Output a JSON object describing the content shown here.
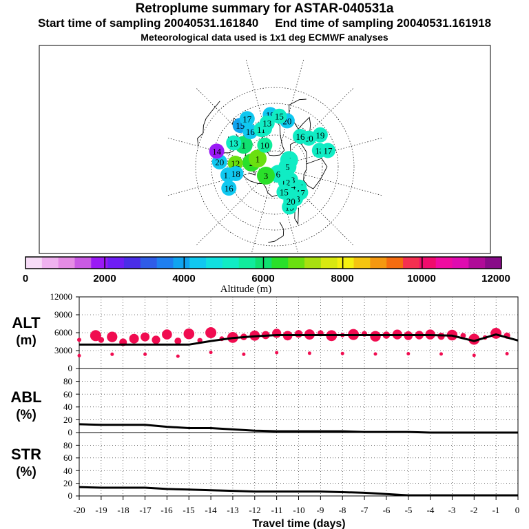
{
  "header": {
    "title": "Retroplume summary for ASTAR-040531a",
    "start_time": "Start time of sampling 20040531.161840",
    "end_time": "End time of sampling 20040531.161918",
    "met_data": "Meteorological data used is 1x1 deg ECMWF analyses"
  },
  "colorbar": {
    "ticks": [
      "0",
      "2000",
      "4000",
      "6000",
      "8000",
      "10000",
      "12000"
    ],
    "label": "Altitude (m)",
    "colors": [
      "#f7dcf7",
      "#efb2ef",
      "#e58ce5",
      "#c95ae3",
      "#9a1af5",
      "#6e1ef5",
      "#4a2ee8",
      "#2f5ce8",
      "#1f7ff0",
      "#10a4f0",
      "#10c8f0",
      "#10e0e0",
      "#10ecc4",
      "#10ec9c",
      "#10e070",
      "#2ae02a",
      "#6ae010",
      "#a8e010",
      "#d8e810",
      "#f4f010",
      "#f4c410",
      "#f49810",
      "#f46c10",
      "#f43050",
      "#f00c6c",
      "#f00ca0",
      "#e00cb0",
      "#b00c98",
      "#880c88"
    ]
  },
  "map_labels": [
    {
      "t": "20",
      "lon": -95,
      "lat": 62,
      "c": "#10ecc4"
    },
    {
      "t": "19",
      "lon": -100,
      "lat": 55,
      "c": "#10ecc4"
    },
    {
      "t": "18",
      "lon": -115,
      "lat": 60,
      "c": "#10ecc4"
    },
    {
      "t": "17",
      "lon": -118,
      "lat": 55,
      "c": "#10ecc4"
    },
    {
      "t": "16",
      "lon": -175,
      "lat": 70,
      "c": "#10ecc4"
    },
    {
      "t": "17",
      "lon": 180,
      "lat": 67,
      "c": "#10ecc4"
    },
    {
      "t": "18",
      "lon": 168,
      "lat": 66,
      "c": "#10ecc4"
    },
    {
      "t": "15",
      "lon": 155,
      "lat": 63,
      "c": "#10ecc4"
    },
    {
      "t": "20",
      "lon": 160,
      "lat": 66,
      "c": "#10ecc4"
    },
    {
      "t": "14",
      "lon": 175,
      "lat": 74,
      "c": "#10ecc4"
    },
    {
      "t": "13",
      "lon": -175,
      "lat": 77,
      "c": "#10ecc4"
    },
    {
      "t": "12",
      "lon": 170,
      "lat": 78,
      "c": "#10ecc4"
    },
    {
      "t": "15",
      "lon": 155,
      "lat": 73,
      "c": "#10ecc4"
    },
    {
      "t": "16",
      "lon": -85,
      "lat": 65,
      "c": "#10ecc4"
    },
    {
      "t": "4",
      "lon": -110,
      "lat": 80,
      "c": "#10ecc4"
    },
    {
      "t": "5",
      "lon": -135,
      "lat": 82,
      "c": "#10ecc4"
    },
    {
      "t": "6",
      "lon": 160,
      "lat": 85,
      "c": "#10ecc4"
    },
    {
      "t": "3",
      "lon": 90,
      "lat": 82,
      "c": "#2ae02a"
    },
    {
      "t": "2",
      "lon": 35,
      "lat": 75,
      "c": "#2ae02a"
    },
    {
      "t": "1",
      "lon": 20,
      "lat": 78,
      "c": "#6ae010"
    },
    {
      "t": "12",
      "lon": 40,
      "lat": 65,
      "c": "#6ae010"
    },
    {
      "t": "1",
      "lon": 10,
      "lat": 66,
      "c": "#10e070"
    },
    {
      "t": "15",
      "lon": -5,
      "lat": 56,
      "c": "#10a4f0"
    },
    {
      "t": "17",
      "lon": -15,
      "lat": 55,
      "c": "#10c8f0"
    },
    {
      "t": "16",
      "lon": -10,
      "lat": 63,
      "c": "#10c8f0"
    },
    {
      "t": "19",
      "lon": -40,
      "lat": 57,
      "c": "#10c8f0"
    },
    {
      "t": "20",
      "lon": -60,
      "lat": 60,
      "c": "#10c8f0"
    },
    {
      "t": "10",
      "lon": -20,
      "lat": 75,
      "c": "#10ec9c"
    },
    {
      "t": "13",
      "lon": 15,
      "lat": 60,
      "c": "#10ecc4"
    },
    {
      "t": "17",
      "lon": 55,
      "lat": 60,
      "c": "#10c8f0"
    },
    {
      "t": "16",
      "lon": 70,
      "lat": 58,
      "c": "#10c8f0"
    },
    {
      "t": "18",
      "lon": 55,
      "lat": 65,
      "c": "#10c8f0"
    },
    {
      "t": "20",
      "lon": 40,
      "lat": 55,
      "c": "#10c8f0"
    },
    {
      "t": "14",
      "lon": 30,
      "lat": 52,
      "c": "#9a1af5"
    },
    {
      "t": "12",
      "lon": -30,
      "lat": 65,
      "c": "#10ecc4"
    },
    {
      "t": "11",
      "lon": -25,
      "lat": 65,
      "c": "#10ecc4"
    },
    {
      "t": "13",
      "lon": -35,
      "lat": 62,
      "c": "#10ecc4"
    },
    {
      "t": "15",
      "lon": -50,
      "lat": 58,
      "c": "#10ecc4"
    }
  ],
  "chart_data": [
    {
      "type": "scatter",
      "title": "ALT (m)",
      "ylabel": "ALT (m)",
      "ylim": [
        0,
        12000
      ],
      "yticks": [
        "12000",
        "9000",
        "6000",
        "3000",
        "0"
      ],
      "median_line": {
        "x": [
          -20,
          -19,
          -18,
          -17,
          -16,
          -15,
          -14,
          -13,
          -12,
          -11,
          -10,
          -9,
          -8,
          -7,
          -6,
          -5,
          -4,
          -3,
          -2,
          -1,
          0
        ],
        "y": [
          4000,
          4000,
          4000,
          4000,
          4000,
          4000,
          4600,
          5100,
          5400,
          5600,
          5600,
          5600,
          5600,
          5600,
          5600,
          5600,
          5600,
          5500,
          4600,
          5700,
          4700
        ]
      },
      "points_x": [
        -20,
        -19.25,
        -19,
        -18.5,
        -18,
        -17.5,
        -17,
        -16.5,
        -16,
        -15.5,
        -15,
        -14.5,
        -14,
        -13.5,
        -13,
        -12.5,
        -12,
        -11.5,
        -11,
        -10.5,
        -10,
        -9.5,
        -9,
        -8.5,
        -8,
        -7.5,
        -7,
        -6.5,
        -6,
        -5.5,
        -5,
        -4.5,
        -4,
        -3.5,
        -3,
        -2.5,
        -2,
        -1.5,
        -1,
        -0.5
      ],
      "points_y": [
        4800,
        5500,
        4800,
        5300,
        4400,
        5000,
        5300,
        4800,
        5700,
        4600,
        5800,
        4700,
        6000,
        5000,
        5200,
        5300,
        5500,
        5600,
        5900,
        5500,
        5800,
        5700,
        5900,
        5500,
        5600,
        5700,
        5800,
        5400,
        5600,
        5700,
        5500,
        5600,
        5700,
        5400,
        5600,
        5500,
        4900,
        5200,
        5900,
        5500
      ]
    },
    {
      "type": "line",
      "title": "ABL (%)",
      "ylabel": "ABL (%)",
      "ylim": [
        0,
        100
      ],
      "yticks": [
        "80",
        "60",
        "40",
        "20",
        "0"
      ],
      "x": [
        -20,
        -19,
        -18,
        -17,
        -16,
        -15,
        -14,
        -13,
        -12,
        -11,
        -10,
        -9,
        -8,
        -7,
        -6,
        -5,
        -4,
        -3,
        -2,
        -1,
        0
      ],
      "y": [
        13,
        12,
        12,
        12,
        9,
        7,
        7,
        5,
        3,
        2,
        2,
        2,
        2,
        1,
        1,
        1,
        0,
        0,
        0,
        0,
        0
      ]
    },
    {
      "type": "line",
      "title": "STR (%)",
      "ylabel": "STR (%)",
      "ylim": [
        0,
        100
      ],
      "yticks": [
        "80",
        "60",
        "40",
        "20",
        "0"
      ],
      "x": [
        -20,
        -19,
        -18,
        -17,
        -16,
        -15,
        -14,
        -13,
        -12,
        -11,
        -10,
        -9,
        -8,
        -7,
        -6,
        -5,
        -4,
        -3,
        -2,
        -1,
        0
      ],
      "y": [
        14,
        13,
        13,
        13,
        11,
        10,
        9,
        8,
        7,
        7,
        7,
        7,
        6,
        5,
        3,
        1,
        1,
        1,
        1,
        1,
        1
      ]
    }
  ],
  "panels": {
    "alt": {
      "label1": "ALT",
      "label2": "(m)"
    },
    "abl": {
      "label1": "ABL",
      "label2": "(%)"
    },
    "str": {
      "label1": "STR",
      "label2": "(%)"
    }
  },
  "xaxis": {
    "ticks": [
      "-20",
      "-19",
      "-18",
      "-17",
      "-16",
      "-15",
      "-14",
      "-13",
      "-12",
      "-11",
      "-10",
      "-9",
      "-8",
      "-7",
      "-6",
      "-5",
      "-4",
      "-3",
      "-2",
      "-1",
      "0"
    ],
    "label": "Travel time (days)"
  }
}
